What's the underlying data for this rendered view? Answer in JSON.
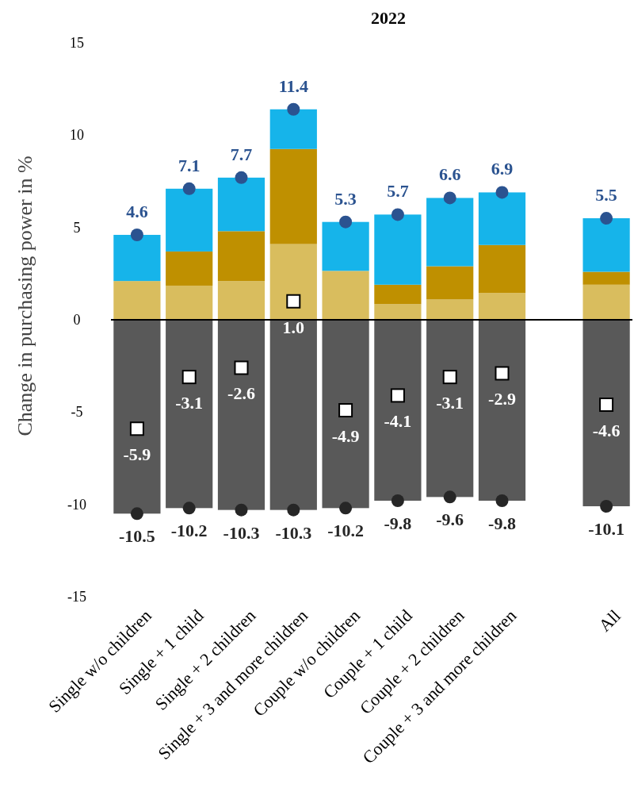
{
  "chart_data": {
    "type": "bar",
    "title": "2022",
    "ylabel": "Change in purchasing power in %",
    "stacked": true,
    "categories": [
      "Single w/o children",
      "Single + 1 child",
      "Single + 2 children",
      "Single + 3 and more children",
      "Couple w/o children",
      "Couple + 1 child",
      "Couple + 2 children",
      "Couple + 3 and more children",
      null,
      "All"
    ],
    "series": [
      {
        "color": "#d9bd5e",
        "values": [
          2.1,
          1.85,
          2.1,
          4.1,
          2.65,
          0.85,
          1.1,
          1.45,
          null,
          1.9
        ]
      },
      {
        "color": "#bf9000",
        "values": [
          0,
          1.85,
          2.7,
          5.15,
          0,
          1.05,
          1.8,
          2.6,
          null,
          0.7
        ]
      },
      {
        "color": "#16b4ea",
        "values": [
          2.5,
          3.4,
          2.9,
          2.15,
          2.65,
          3.8,
          3.7,
          2.85,
          null,
          2.9
        ]
      },
      {
        "color": "#595959",
        "values": [
          -10.5,
          -10.2,
          -10.3,
          -10.3,
          -10.2,
          -9.8,
          -9.6,
          -9.8,
          null,
          -10.1
        ]
      },
      {
        "type": "scatter",
        "marker": "circle",
        "color": "#2b5390",
        "values": [
          4.6,
          7.1,
          7.7,
          11.4,
          5.3,
          5.7,
          6.6,
          6.9,
          null,
          5.5
        ],
        "value_labels": [
          "4.6",
          "7.1",
          "7.7",
          "11.4",
          "5.3",
          "5.7",
          "6.6",
          "6.9",
          null,
          "5.5"
        ]
      },
      {
        "type": "scatter",
        "marker": "circle",
        "color": "#262626",
        "values": [
          -10.5,
          -10.2,
          -10.3,
          -10.3,
          -10.2,
          -9.8,
          -9.6,
          -9.8,
          null,
          -10.1
        ],
        "value_labels": [
          "-10.5",
          "-10.2",
          "-10.3",
          "-10.3",
          "-10.2",
          "-9.8",
          "-9.6",
          "-9.8",
          null,
          "-10.1"
        ]
      },
      {
        "type": "scatter",
        "marker": "square",
        "color": "#ffffff",
        "values": [
          -5.9,
          -3.1,
          -2.6,
          1.0,
          -4.9,
          -4.1,
          -3.1,
          -2.9,
          null,
          -4.6
        ],
        "value_labels": [
          "-5.9",
          "-3.1",
          "-2.6",
          "1.0",
          "-4.9",
          "-4.1",
          "-3.1",
          "-2.9",
          null,
          "-4.6"
        ]
      }
    ],
    "ylim": [
      -15,
      15
    ],
    "yticks": [
      -15,
      -10,
      -5,
      0,
      5,
      10,
      15
    ],
    "ref_lines": [
      {
        "axis": "y",
        "value": 0,
        "color": "#000000"
      }
    ]
  }
}
